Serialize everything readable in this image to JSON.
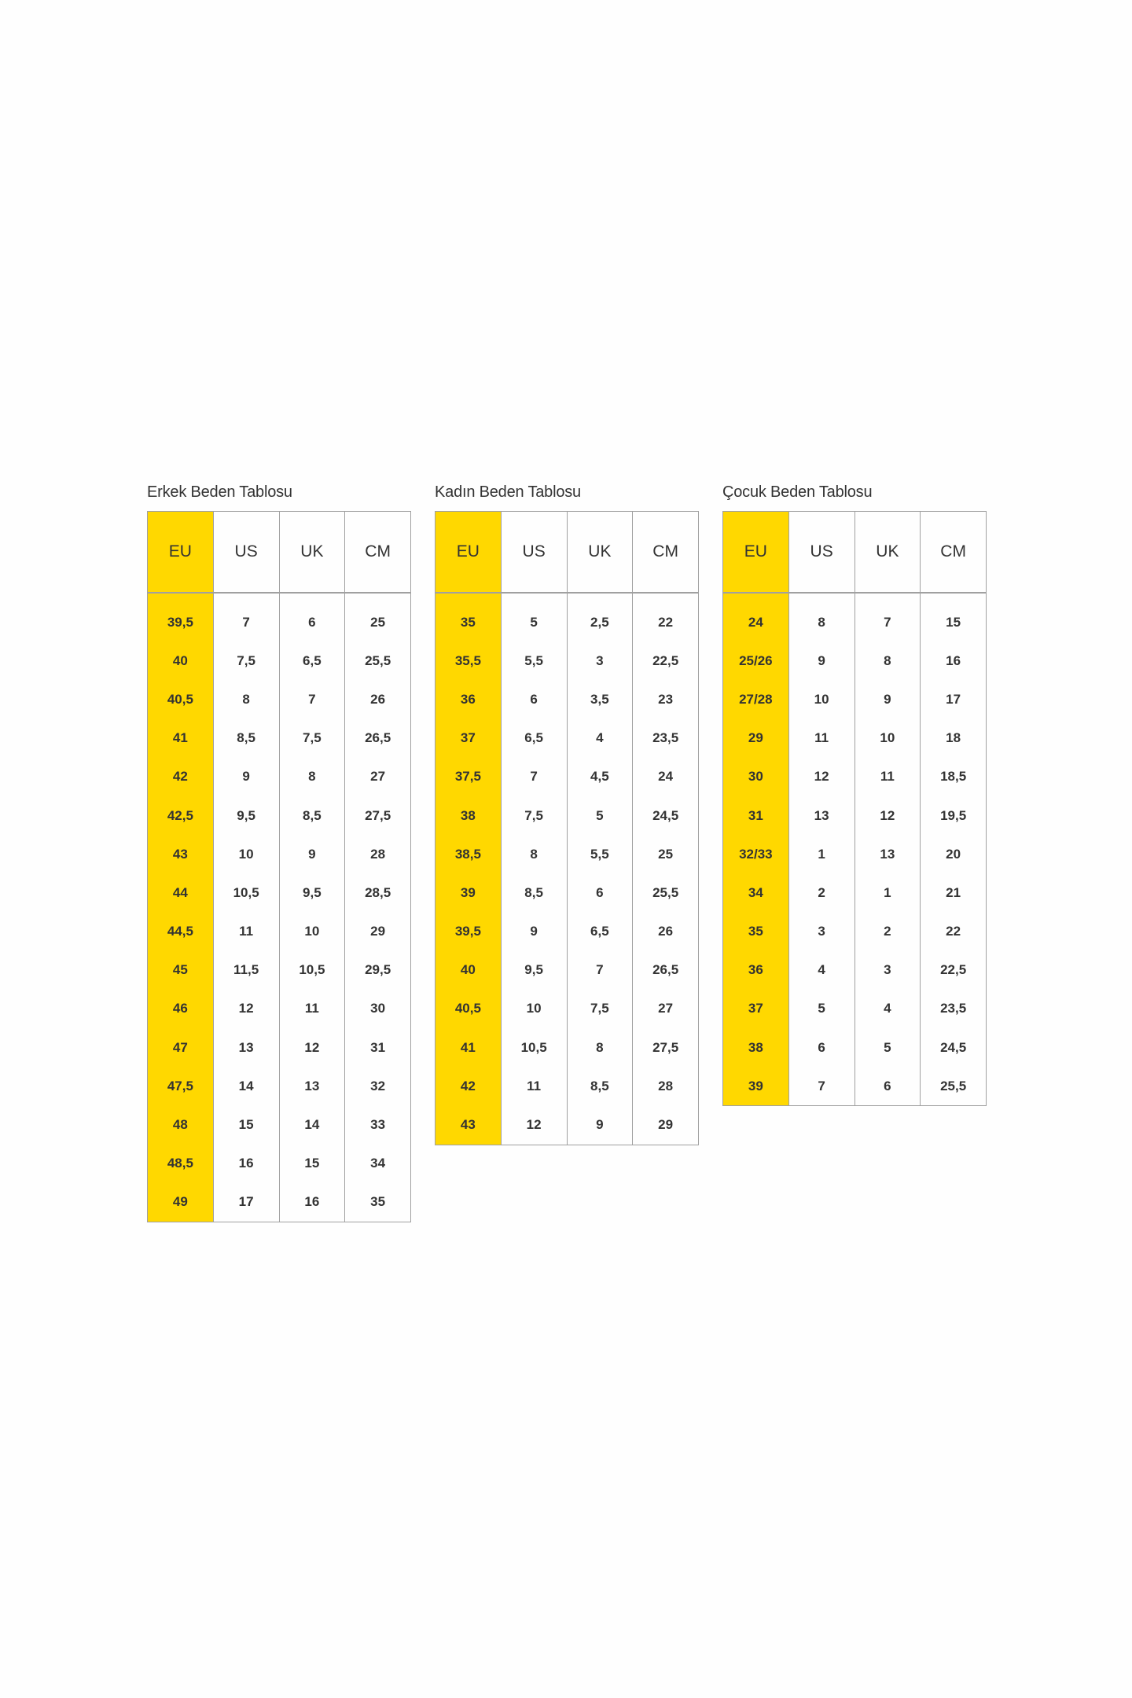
{
  "colors": {
    "highlight": "#ffd800",
    "border": "#a0a0a0",
    "text": "#333333"
  },
  "tables": [
    {
      "title": "Erkek Beden Tablosu",
      "headers": [
        "EU",
        "US",
        "UK",
        "CM"
      ],
      "rows": [
        [
          "39,5",
          "7",
          "6",
          "25"
        ],
        [
          "40",
          "7,5",
          "6,5",
          "25,5"
        ],
        [
          "40,5",
          "8",
          "7",
          "26"
        ],
        [
          "41",
          "8,5",
          "7,5",
          "26,5"
        ],
        [
          "42",
          "9",
          "8",
          "27"
        ],
        [
          "42,5",
          "9,5",
          "8,5",
          "27,5"
        ],
        [
          "43",
          "10",
          "9",
          "28"
        ],
        [
          "44",
          "10,5",
          "9,5",
          "28,5"
        ],
        [
          "44,5",
          "11",
          "10",
          "29"
        ],
        [
          "45",
          "11,5",
          "10,5",
          "29,5"
        ],
        [
          "46",
          "12",
          "11",
          "30"
        ],
        [
          "47",
          "13",
          "12",
          "31"
        ],
        [
          "47,5",
          "14",
          "13",
          "32"
        ],
        [
          "48",
          "15",
          "14",
          "33"
        ],
        [
          "48,5",
          "16",
          "15",
          "34"
        ],
        [
          "49",
          "17",
          "16",
          "35"
        ]
      ]
    },
    {
      "title": "Kadın Beden Tablosu",
      "headers": [
        "EU",
        "US",
        "UK",
        "CM"
      ],
      "rows": [
        [
          "35",
          "5",
          "2,5",
          "22"
        ],
        [
          "35,5",
          "5,5",
          "3",
          "22,5"
        ],
        [
          "36",
          "6",
          "3,5",
          "23"
        ],
        [
          "37",
          "6,5",
          "4",
          "23,5"
        ],
        [
          "37,5",
          "7",
          "4,5",
          "24"
        ],
        [
          "38",
          "7,5",
          "5",
          "24,5"
        ],
        [
          "38,5",
          "8",
          "5,5",
          "25"
        ],
        [
          "39",
          "8,5",
          "6",
          "25,5"
        ],
        [
          "39,5",
          "9",
          "6,5",
          "26"
        ],
        [
          "40",
          "9,5",
          "7",
          "26,5"
        ],
        [
          "40,5",
          "10",
          "7,5",
          "27"
        ],
        [
          "41",
          "10,5",
          "8",
          "27,5"
        ],
        [
          "42",
          "11",
          "8,5",
          "28"
        ],
        [
          "43",
          "12",
          "9",
          "29"
        ]
      ]
    },
    {
      "title": "Çocuk Beden Tablosu",
      "headers": [
        "EU",
        "US",
        "UK",
        "CM"
      ],
      "rows": [
        [
          "24",
          "8",
          "7",
          "15"
        ],
        [
          "25/26",
          "9",
          "8",
          "16"
        ],
        [
          "27/28",
          "10",
          "9",
          "17"
        ],
        [
          "29",
          "11",
          "10",
          "18"
        ],
        [
          "30",
          "12",
          "11",
          "18,5"
        ],
        [
          "31",
          "13",
          "12",
          "19,5"
        ],
        [
          "32/33",
          "1",
          "13",
          "20"
        ],
        [
          "34",
          "2",
          "1",
          "21"
        ],
        [
          "35",
          "3",
          "2",
          "22"
        ],
        [
          "36",
          "4",
          "3",
          "22,5"
        ],
        [
          "37",
          "5",
          "4",
          "23,5"
        ],
        [
          "38",
          "6",
          "5",
          "24,5"
        ],
        [
          "39",
          "7",
          "6",
          "25,5"
        ]
      ]
    }
  ]
}
